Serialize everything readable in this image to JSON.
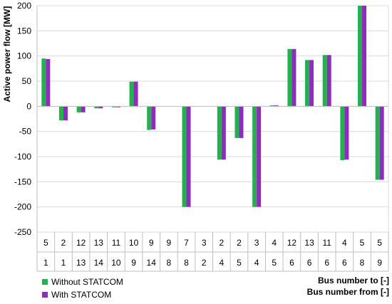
{
  "chart_data": {
    "type": "bar",
    "ylabel": "Active power flow [MW]",
    "ylim": [
      -250,
      200
    ],
    "yticks": [
      200,
      150,
      100,
      50,
      0,
      -50,
      -100,
      -150,
      -200,
      -250
    ],
    "grid": true,
    "x_row_labels": [
      "Bus number to [-]",
      "Bus number from [-]"
    ],
    "categories_to": [
      "5",
      "2",
      "12",
      "13",
      "11",
      "10",
      "9",
      "9",
      "7",
      "3",
      "2",
      "2",
      "3",
      "4",
      "12",
      "13",
      "11",
      "4",
      "5",
      "5"
    ],
    "categories_from": [
      "1",
      "1",
      "13",
      "14",
      "10",
      "9",
      "14",
      "8",
      "8",
      "2",
      "4",
      "5",
      "4",
      "5",
      "6",
      "6",
      "6",
      "6",
      "8",
      "9"
    ],
    "legend_position": "bottom-left",
    "series": [
      {
        "name": "Without STATCOM",
        "color": "#22b14c",
        "values": [
          95,
          -28,
          -12,
          -4,
          -2,
          49,
          -47,
          0,
          -200,
          0,
          -106,
          -63,
          -200,
          2,
          114,
          92,
          102,
          -107,
          200,
          -146
        ]
      },
      {
        "name": "With STATCOM",
        "color": "#8e2dba",
        "values": [
          94,
          -28,
          -12,
          -4,
          -2,
          49,
          -46,
          0,
          -200,
          0,
          -106,
          -63,
          -200,
          2,
          114,
          92,
          102,
          -106,
          200,
          -146
        ]
      }
    ]
  }
}
